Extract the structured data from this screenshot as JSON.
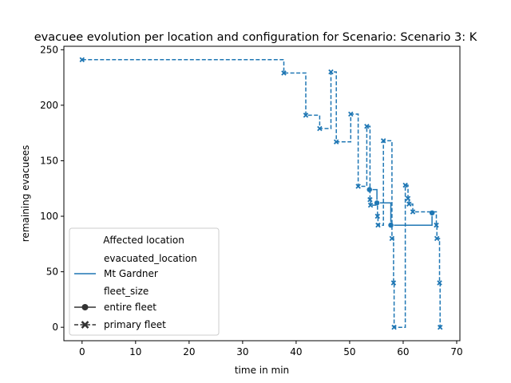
{
  "chart_data": {
    "type": "line",
    "title": "evacuee evolution per location and configuration for Scenario: Scenario 3: K",
    "xlabel": "time in min",
    "ylabel": "remaining evacuees",
    "xlim": [
      -3.4,
      70.6
    ],
    "ylim": [
      -12.1,
      253.1
    ],
    "xticks": [
      0,
      10,
      20,
      30,
      40,
      50,
      60,
      70
    ],
    "yticks": [
      0,
      50,
      100,
      150,
      200,
      250
    ],
    "grid": false,
    "legend": {
      "placement": "lower-left",
      "title": "Affected location",
      "hue_heading": "evacuated_location",
      "style_heading": "fleet_size",
      "entries": [
        {
          "label": "Mt Gardner",
          "kind": "hue"
        },
        {
          "label": "entire fleet",
          "kind": "style",
          "marker": "circle",
          "dash": "solid"
        },
        {
          "label": "primary fleet",
          "kind": "style",
          "marker": "x",
          "dash": "dashed"
        }
      ]
    },
    "color": "#1f77b4",
    "series": [
      {
        "name": "Mt Gardner",
        "fleet": "entire fleet",
        "marker": "circle",
        "drawstyle": "steps-post",
        "x": [
          53.7,
          55.1,
          57.7,
          65.4
        ],
        "y": [
          124,
          112,
          92,
          103
        ]
      },
      {
        "name": "Mt Gardner",
        "fleet": "primary fleet",
        "marker": "x",
        "drawstyle": "steps-post",
        "x": [
          0,
          37.7,
          41.8,
          44.4,
          46.5,
          47.5,
          50.2,
          51.6,
          53.2,
          53.8,
          53.9,
          55.2,
          55.3,
          56.3,
          57.9,
          58.2,
          58.3,
          60.4,
          60.9,
          61.1,
          61.8,
          66.2,
          66.3,
          66.8,
          66.9
        ],
        "y": [
          241,
          229,
          191,
          179,
          230,
          167,
          192,
          127,
          181,
          115,
          110,
          100,
          92,
          168,
          80,
          40,
          0,
          128,
          116,
          111,
          104,
          92,
          80,
          40,
          0
        ]
      }
    ]
  }
}
